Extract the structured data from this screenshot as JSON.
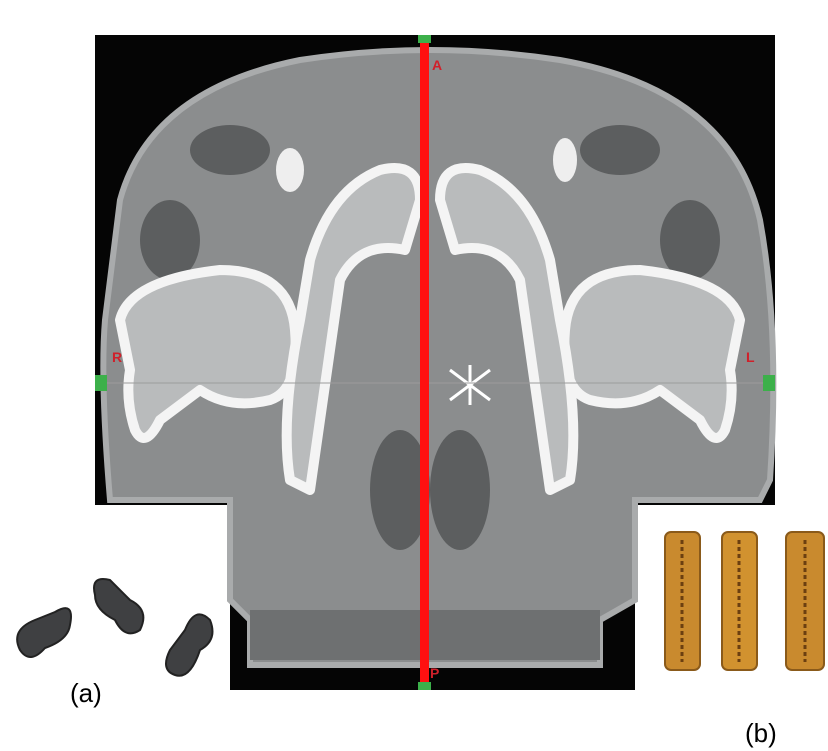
{
  "orientation_labels": {
    "anterior": "A",
    "right": "R",
    "left": "L",
    "posterior": "P"
  },
  "panel_labels": {
    "a": "(a)",
    "b": "(b)"
  }
}
